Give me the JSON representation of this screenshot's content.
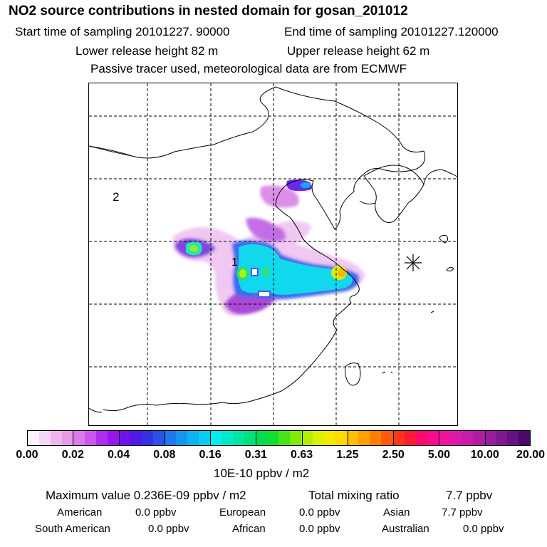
{
  "title": "NO2 source contributions in nested domain for gosan_201012",
  "sampling": {
    "start": "Start time of sampling 20101227. 90000",
    "end": "End time of sampling 20101227.120000"
  },
  "release": {
    "lower": "Lower release height   82 m",
    "upper": "Upper release height   62 m"
  },
  "tracer_note": "Passive tracer used, meteorological data are from ECMWF",
  "map": {
    "region_labels": [
      "2",
      "1"
    ],
    "receptor_marker": "asterisk-marker"
  },
  "colorbar": {
    "tick_labels": [
      "0.00",
      "0.02",
      "0.04",
      "0.08",
      "0.16",
      "0.31",
      "0.63",
      "1.25",
      "2.50",
      "5.00",
      "10.00",
      "20.00"
    ],
    "colors": [
      "#fdf3fd",
      "#f6d6f6",
      "#eeb6ee",
      "#e79ae7",
      "#d97bea",
      "#cc55ee",
      "#b22cf0",
      "#9a14f2",
      "#7311ee",
      "#4d1ae9",
      "#3530e4",
      "#2a52e6",
      "#1e78ea",
      "#1496ee",
      "#0cb2f2",
      "#06cdf4",
      "#03ecf0",
      "#00e8cc",
      "#00e4a4",
      "#00e07a",
      "#00dc52",
      "#12de2c",
      "#46e414",
      "#80ea0c",
      "#b4ee08",
      "#daf004",
      "#f2e800",
      "#ffd800",
      "#ffbe00",
      "#ffa000",
      "#ff8000",
      "#ff5a0a",
      "#ff3418",
      "#ff1a3a",
      "#ff0a6a",
      "#fa0a8c",
      "#ee14a0",
      "#dc1aaa",
      "#c81caa",
      "#b01ca6",
      "#981c9e",
      "#801890",
      "#661280",
      "#4a0a6a"
    ],
    "units": "10E-10 ppbv / m2"
  },
  "stats": {
    "max_line": "Maximum value  0.236E-09 ppbv / m2",
    "total_label": "Total mixing ratio",
    "total_value": "7.7 ppbv"
  },
  "contributions": [
    {
      "label": "American",
      "value": "0.0 ppbv"
    },
    {
      "label": "European",
      "value": "0.0 ppbv"
    },
    {
      "label": "Asian",
      "value": "7.7 ppbv"
    },
    {
      "label": "South American",
      "value": "0.0 ppbv"
    },
    {
      "label": "African",
      "value": "0.0 ppbv"
    },
    {
      "label": "Australian",
      "value": "0.0 ppbv"
    }
  ]
}
